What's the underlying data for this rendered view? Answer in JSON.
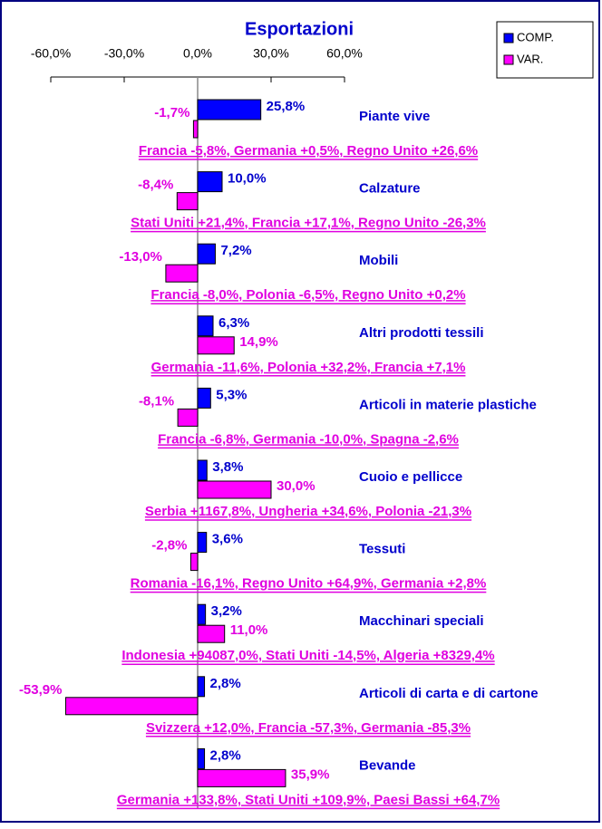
{
  "chart_data": {
    "type": "hbar",
    "title": "Esportazioni",
    "categories": [
      "Piante vive",
      "Calzature",
      "Mobili",
      "Altri prodotti tessili",
      "Articoli in materie plastiche",
      "Cuoio e pellicce",
      "Tessuti",
      "Macchinari speciali",
      "Articoli di carta e di cartone",
      "Bevande"
    ],
    "series": [
      {
        "name": "COMP.",
        "color": "#0000ff",
        "label_color": "#0000cc",
        "values": [
          25.8,
          10.0,
          7.2,
          6.3,
          5.3,
          3.8,
          3.6,
          3.2,
          2.8,
          2.8
        ],
        "value_labels": [
          "25,8%",
          "10,0%",
          "7,2%",
          "6,3%",
          "5,3%",
          "3,8%",
          "3,6%",
          "3,2%",
          "2,8%",
          "2,8%"
        ]
      },
      {
        "name": "VAR.",
        "color": "#ff00ff",
        "label_color": "#e000e0",
        "values": [
          -1.7,
          -8.4,
          -13.0,
          14.9,
          -8.1,
          30.0,
          -2.8,
          11.0,
          -53.9,
          35.9
        ],
        "value_labels": [
          "-1,7%",
          "-8,4%",
          "-13,0%",
          "14,9%",
          "-8,1%",
          "30,0%",
          "-2,8%",
          "11,0%",
          "-53,9%",
          "35,9%"
        ]
      }
    ],
    "annotations": [
      "Francia -5,8%, Germania +0,5%, Regno Unito +26,6%",
      "Stati Uniti +21,4%, Francia +17,1%, Regno Unito -26,3%",
      "Francia -8,0%, Polonia -6,5%, Regno Unito +0,2%",
      "Germania -11,6%, Polonia +32,2%, Francia +7,1%",
      "Francia -6,8%, Germania -10,0%, Spagna -2,6%",
      "Serbia +1167,8%, Ungheria +34,6%, Polonia -21,3%",
      "Romania -16,1%, Regno Unito +64,9%, Germania +2,8%",
      "Indonesia +94087,0%, Stati Uniti -14,5%, Algeria +8329,4%",
      "Svizzera +12,0%, Francia -57,3%, Germania -85,3%",
      "Germania +133,8%, Stati Uniti +109,9%, Paesi Bassi +64,7%"
    ],
    "xlim": [
      -60,
      60
    ],
    "xticks": [
      {
        "value": -60,
        "label": "-60,0%"
      },
      {
        "value": -30,
        "label": "-30,0%"
      },
      {
        "value": 0,
        "label": "0,0%"
      },
      {
        "value": 30,
        "label": "30,0%"
      },
      {
        "value": 60,
        "label": "60,0%"
      }
    ],
    "legend": "top-right"
  }
}
